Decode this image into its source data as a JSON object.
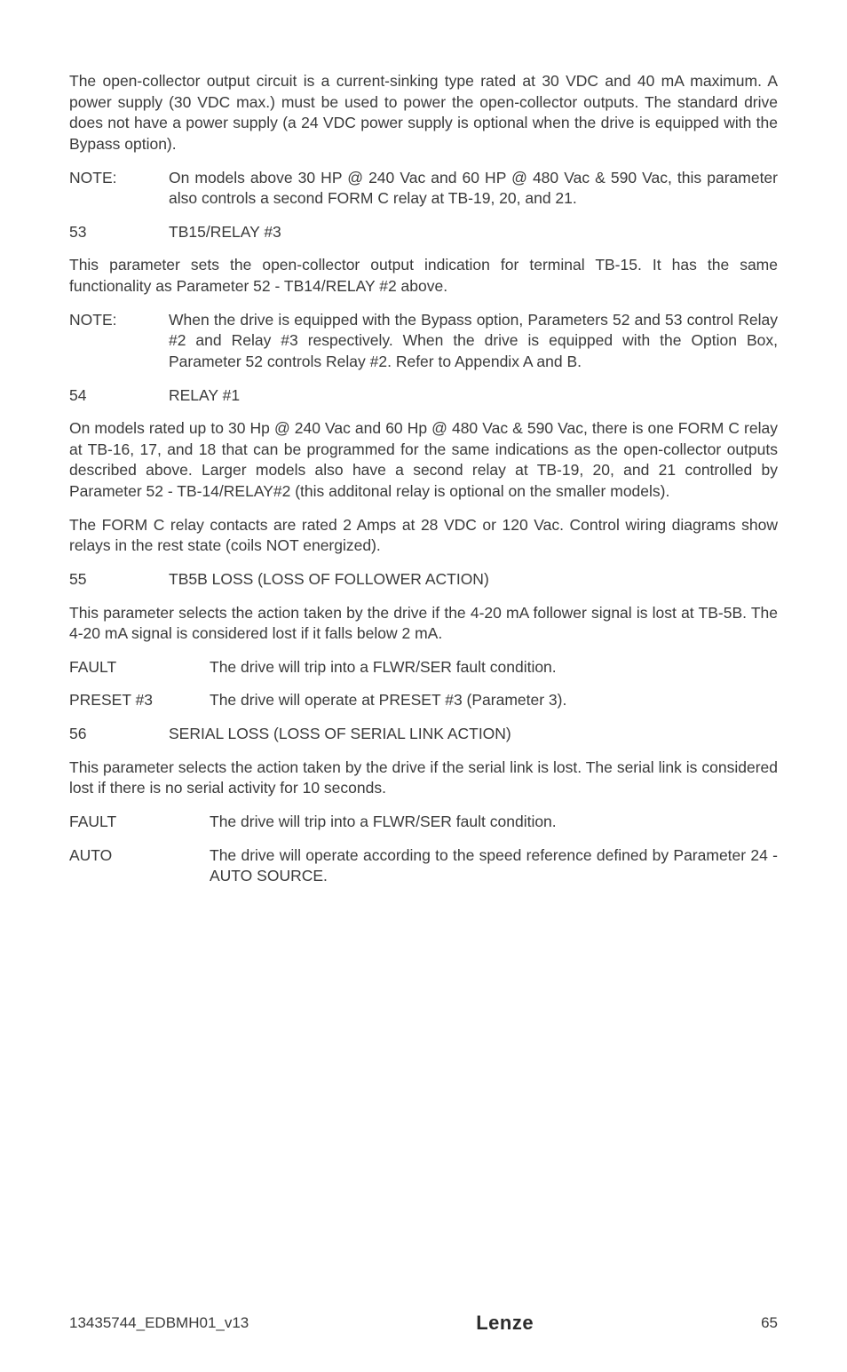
{
  "colors": {
    "text": "#3a3a3a",
    "background": "#ffffff"
  },
  "typography": {
    "body_fontsize_pt": 13,
    "body_line_height": 1.35,
    "font_family": "Segoe UI / Myriad / Arial-like sans-serif"
  },
  "paragraphs": {
    "p1": "The open-collector output circuit is a current-sinking type rated at 30 VDC and  40 mA maximum. A power supply (30 VDC max.) must be used to power the open-collector outputs. The standard drive does not have a power supply (a 24 VDC power supply is optional when the drive is equipped with the Bypass option).",
    "note1_label": "NOTE:",
    "note1_body": "On models above 30 HP @ 240 Vac and 60 HP @ 480 Vac & 590 Vac, this parameter also controls a second FORM C relay at TB-19, 20, and 21.",
    "s53_num": "53",
    "s53_title": "TB15/RELAY #3",
    "p2": "This parameter sets the open-collector output indication for terminal TB-15.  It has the same functionality as Parameter 52 - TB14/RELAY #2 above.",
    "note2_label": "NOTE:",
    "note2_body": "When the drive is equipped with the Bypass option, Parameters 52 and 53 control Relay #2 and Relay #3 respectively. When the drive is equipped with the Option Box, Parameter 52 controls Relay #2. Refer to Appendix A and B.",
    "s54_num": "54",
    "s54_title": "RELAY #1",
    "p3": "On models rated up to 30 Hp @ 240 Vac and 60 Hp @ 480 Vac & 590 Vac, there is one FORM C relay at TB-16, 17, and 18 that can be programmed for the same indications as the open-collector outputs described above. Larger models also have a second relay at TB-19, 20, and 21 controlled by Parameter 52 - TB-14/RELAY#2 (this additonal relay is optional on the smaller models).",
    "p4": "The FORM C relay contacts are rated 2 Amps at 28 VDC or 120 Vac. Control wiring diagrams show relays in the rest state (coils NOT energized).",
    "s55_num": "55",
    "s55_title": "TB5B LOSS (LOSS OF FOLLOWER ACTION)",
    "p5": "This parameter selects the action taken by the drive if the 4-20 mA follower signal is lost at TB-5B. The 4-20 mA signal is considered lost if it falls below 2 mA.",
    "fault1_label": "FAULT",
    "fault1_body": "The drive will trip into a FLWR/SER fault condition.",
    "preset3_label": "PRESET #3",
    "preset3_body": "The drive will operate at PRESET #3 (Parameter 3).",
    "s56_num": "56",
    "s56_title": "SERIAL LOSS (LOSS OF SERIAL LINK ACTION)",
    "p6": "This parameter selects the action taken by the drive if the serial link is lost.  The serial link is considered lost if there is no serial activity for 10 seconds.",
    "fault2_label": "FAULT",
    "fault2_body": "The drive will trip into a FLWR/SER fault condition.",
    "auto_label": "AUTO",
    "auto_body": "The drive will operate according to the speed reference  defined by Parameter 24 - AUTO SOURCE."
  },
  "footer": {
    "doc_id": "13435744_EDBMH01_v13",
    "brand": "Lenze",
    "page_number": "65"
  }
}
